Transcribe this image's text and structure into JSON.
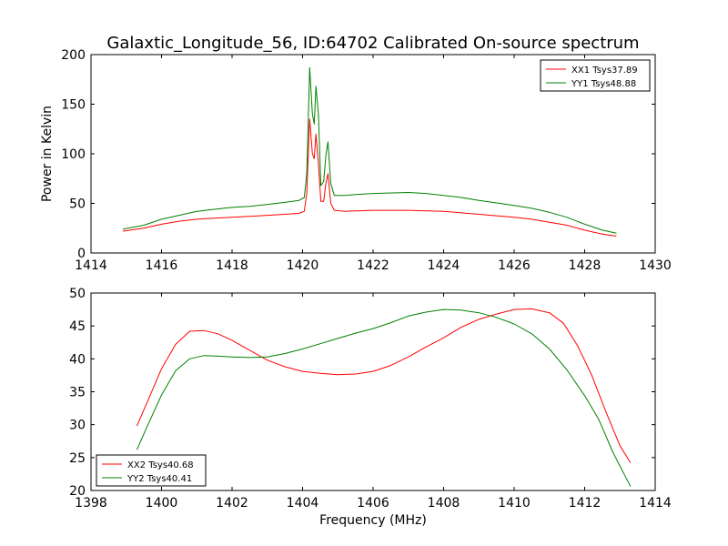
{
  "figure": {
    "title": "Galaxtic_Longitude_56, ID:64702 Calibrated On-source spectrum"
  },
  "chart_data": [
    {
      "type": "line",
      "title": "Galaxtic_Longitude_56, ID:64702 Calibrated On-source spectrum",
      "xlabel": "",
      "ylabel": "Power in Kelvin",
      "xlim": [
        1414,
        1430
      ],
      "ylim": [
        0,
        200
      ],
      "xticks": [
        "1414",
        "1416",
        "1418",
        "1420",
        "1422",
        "1424",
        "1426",
        "1428",
        "1430"
      ],
      "yticks": [
        "0",
        "50",
        "100",
        "150",
        "200"
      ],
      "grid": false,
      "legend_position": "top-right",
      "series": [
        {
          "name": "XX1 Tsys37.89",
          "color": "#ff0000",
          "points": [
            [
              1414.9,
              22
            ],
            [
              1415.5,
              25
            ],
            [
              1416,
              29
            ],
            [
              1416.5,
              32
            ],
            [
              1417,
              34
            ],
            [
              1417.5,
              35
            ],
            [
              1418,
              36
            ],
            [
              1418.5,
              37
            ],
            [
              1419,
              38
            ],
            [
              1419.5,
              39
            ],
            [
              1419.9,
              40
            ],
            [
              1420.05,
              42
            ],
            [
              1420.12,
              60
            ],
            [
              1420.2,
              135
            ],
            [
              1420.28,
              100
            ],
            [
              1420.33,
              95
            ],
            [
              1420.38,
              120
            ],
            [
              1420.45,
              90
            ],
            [
              1420.52,
              52
            ],
            [
              1420.6,
              52
            ],
            [
              1420.66,
              70
            ],
            [
              1420.72,
              80
            ],
            [
              1420.8,
              50
            ],
            [
              1420.9,
              43
            ],
            [
              1421.2,
              42
            ],
            [
              1422,
              43
            ],
            [
              1423,
              43
            ],
            [
              1424,
              42
            ],
            [
              1425,
              39
            ],
            [
              1426,
              36
            ],
            [
              1426.5,
              34
            ],
            [
              1427,
              31
            ],
            [
              1427.5,
              28
            ],
            [
              1428,
              23
            ],
            [
              1428.5,
              19
            ],
            [
              1428.9,
              17
            ]
          ]
        },
        {
          "name": "YY1 Tsys48.88",
          "color": "#008000",
          "points": [
            [
              1414.9,
              24
            ],
            [
              1415.5,
              28
            ],
            [
              1416,
              34
            ],
            [
              1416.5,
              38
            ],
            [
              1417,
              42
            ],
            [
              1417.5,
              44
            ],
            [
              1418,
              46
            ],
            [
              1418.5,
              47
            ],
            [
              1419,
              49
            ],
            [
              1419.5,
              51
            ],
            [
              1419.9,
              53
            ],
            [
              1420.05,
              56
            ],
            [
              1420.12,
              80
            ],
            [
              1420.2,
              187
            ],
            [
              1420.28,
              140
            ],
            [
              1420.33,
              130
            ],
            [
              1420.38,
              168
            ],
            [
              1420.45,
              140
            ],
            [
              1420.52,
              68
            ],
            [
              1420.6,
              72
            ],
            [
              1420.66,
              98
            ],
            [
              1420.72,
              112
            ],
            [
              1420.8,
              70
            ],
            [
              1420.9,
              58
            ],
            [
              1421.2,
              58
            ],
            [
              1421.5,
              59
            ],
            [
              1422,
              60
            ],
            [
              1423,
              61
            ],
            [
              1423.5,
              60
            ],
            [
              1424,
              58
            ],
            [
              1424.5,
              56
            ],
            [
              1425,
              53
            ],
            [
              1426,
              48
            ],
            [
              1426.5,
              45
            ],
            [
              1427,
              41
            ],
            [
              1427.5,
              36
            ],
            [
              1428,
              29
            ],
            [
              1428.5,
              23
            ],
            [
              1428.9,
              20
            ]
          ]
        }
      ]
    },
    {
      "type": "line",
      "title": "",
      "xlabel": "Frequency (MHz)",
      "ylabel": "",
      "xlim": [
        1398,
        1414
      ],
      "ylim": [
        20,
        50
      ],
      "xticks": [
        "1398",
        "1400",
        "1402",
        "1404",
        "1406",
        "1408",
        "1410",
        "1412",
        "1414"
      ],
      "yticks": [
        "20",
        "25",
        "30",
        "35",
        "40",
        "45",
        "50"
      ],
      "grid": false,
      "legend_position": "bottom-left",
      "series": [
        {
          "name": "XX2 Tsys40.68",
          "color": "#ff0000",
          "points": [
            [
              1399.3,
              29.8
            ],
            [
              1399.6,
              33.5
            ],
            [
              1400,
              38.5
            ],
            [
              1400.4,
              42.2
            ],
            [
              1400.8,
              44.2
            ],
            [
              1401.2,
              44.3
            ],
            [
              1401.6,
              43.8
            ],
            [
              1402,
              42.8
            ],
            [
              1402.5,
              41.3
            ],
            [
              1403,
              39.8
            ],
            [
              1403.5,
              38.8
            ],
            [
              1404,
              38.1
            ],
            [
              1404.5,
              37.8
            ],
            [
              1405,
              37.6
            ],
            [
              1405.5,
              37.7
            ],
            [
              1406,
              38.1
            ],
            [
              1406.5,
              39
            ],
            [
              1407,
              40.3
            ],
            [
              1407.5,
              41.8
            ],
            [
              1408,
              43.2
            ],
            [
              1408.5,
              44.8
            ],
            [
              1409,
              46
            ],
            [
              1409.5,
              46.8
            ],
            [
              1410,
              47.5
            ],
            [
              1410.5,
              47.6
            ],
            [
              1411,
              47
            ],
            [
              1411.4,
              45.4
            ],
            [
              1411.8,
              42
            ],
            [
              1412.2,
              37.5
            ],
            [
              1412.6,
              32
            ],
            [
              1413,
              26.8
            ],
            [
              1413.3,
              24.2
            ]
          ]
        },
        {
          "name": "YY2 Tsys40.41",
          "color": "#008000",
          "points": [
            [
              1399.3,
              26.2
            ],
            [
              1399.6,
              29.8
            ],
            [
              1400,
              34.5
            ],
            [
              1400.4,
              38.2
            ],
            [
              1400.8,
              40
            ],
            [
              1401.2,
              40.5
            ],
            [
              1401.6,
              40.4
            ],
            [
              1402,
              40.3
            ],
            [
              1402.5,
              40.2
            ],
            [
              1403,
              40.3
            ],
            [
              1403.5,
              40.8
            ],
            [
              1404,
              41.5
            ],
            [
              1404.5,
              42.3
            ],
            [
              1405,
              43.1
            ],
            [
              1405.5,
              43.9
            ],
            [
              1406,
              44.6
            ],
            [
              1406.5,
              45.5
            ],
            [
              1407,
              46.5
            ],
            [
              1407.5,
              47.1
            ],
            [
              1408,
              47.5
            ],
            [
              1408.5,
              47.4
            ],
            [
              1409,
              47
            ],
            [
              1409.5,
              46.3
            ],
            [
              1410,
              45.3
            ],
            [
              1410.5,
              43.8
            ],
            [
              1411,
              41.5
            ],
            [
              1411.5,
              38.3
            ],
            [
              1412,
              34.4
            ],
            [
              1412.4,
              30.8
            ],
            [
              1412.8,
              25.8
            ],
            [
              1413.3,
              20.6
            ]
          ]
        }
      ]
    }
  ]
}
